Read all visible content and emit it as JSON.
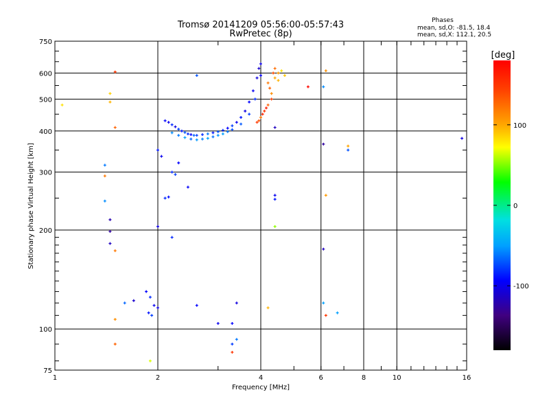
{
  "chart_data": {
    "type": "scatter",
    "title": "Tromsø 20141209 05:56:00-05:57:43",
    "subtitle": "RwPretec (8p)",
    "xlabel": "Frequency [MHz]",
    "ylabel": "Stationary phase Virtual Height [km]",
    "x_scale": "log",
    "y_scale": "log",
    "xlim": [
      1,
      16
    ],
    "ylim": [
      75,
      750
    ],
    "x_ticks": [
      1,
      2,
      4,
      6,
      8,
      10,
      16
    ],
    "x_tick_labels": [
      "1",
      "2",
      "4",
      "6",
      "8",
      "10",
      "16"
    ],
    "y_ticks": [
      75,
      100,
      200,
      300,
      400,
      500,
      600,
      750
    ],
    "y_tick_labels": [
      "75",
      "100",
      "200",
      "300",
      "400",
      "500",
      "600",
      "750"
    ],
    "grid": true,
    "stats": {
      "heading": "Phases",
      "line_o": "mean, sd,O: -81.5, 18.4",
      "line_x": "mean, sd,X: 112.1, 20.5"
    },
    "colorbar": {
      "label": "[deg]",
      "range": [
        -180,
        180
      ],
      "ticks": [
        100,
        0,
        -100
      ],
      "tick_labels": [
        "100",
        "0",
        "-100"
      ]
    },
    "series": [
      {
        "points": [
          {
            "x": 2.1,
            "y": 430,
            "p": -110
          },
          {
            "x": 2.15,
            "y": 425,
            "p": -115
          },
          {
            "x": 2.2,
            "y": 418,
            "p": -100
          },
          {
            "x": 2.25,
            "y": 412,
            "p": -120
          },
          {
            "x": 2.3,
            "y": 405,
            "p": -95
          },
          {
            "x": 2.35,
            "y": 400,
            "p": -105
          },
          {
            "x": 2.4,
            "y": 396,
            "p": -90
          },
          {
            "x": 2.45,
            "y": 392,
            "p": -100
          },
          {
            "x": 2.5,
            "y": 390,
            "p": -110
          },
          {
            "x": 2.55,
            "y": 388,
            "p": -85
          },
          {
            "x": 2.6,
            "y": 388,
            "p": -95
          },
          {
            "x": 2.7,
            "y": 390,
            "p": -100
          },
          {
            "x": 2.8,
            "y": 392,
            "p": -80
          },
          {
            "x": 2.9,
            "y": 395,
            "p": -105
          },
          {
            "x": 3.0,
            "y": 398,
            "p": -90
          },
          {
            "x": 3.1,
            "y": 402,
            "p": -100
          },
          {
            "x": 3.2,
            "y": 408,
            "p": -110
          },
          {
            "x": 3.3,
            "y": 415,
            "p": -95
          },
          {
            "x": 3.4,
            "y": 425,
            "p": -115
          },
          {
            "x": 3.5,
            "y": 440,
            "p": -105
          },
          {
            "x": 3.6,
            "y": 460,
            "p": -120
          },
          {
            "x": 3.7,
            "y": 490,
            "p": -110
          },
          {
            "x": 3.8,
            "y": 530,
            "p": -115
          },
          {
            "x": 3.9,
            "y": 580,
            "p": -120
          },
          {
            "x": 3.95,
            "y": 620,
            "p": -125
          },
          {
            "x": 4.0,
            "y": 640,
            "p": -118
          },
          {
            "x": 4.0,
            "y": 590,
            "p": -112
          },
          {
            "x": 2.2,
            "y": 395,
            "p": -75
          },
          {
            "x": 2.3,
            "y": 388,
            "p": -80
          },
          {
            "x": 2.4,
            "y": 382,
            "p": -70
          },
          {
            "x": 2.5,
            "y": 378,
            "p": -85
          },
          {
            "x": 2.6,
            "y": 376,
            "p": -72
          },
          {
            "x": 2.7,
            "y": 378,
            "p": -78
          },
          {
            "x": 2.8,
            "y": 380,
            "p": -68
          },
          {
            "x": 2.9,
            "y": 384,
            "p": -82
          },
          {
            "x": 3.0,
            "y": 388,
            "p": -74
          },
          {
            "x": 3.1,
            "y": 392,
            "p": -70
          },
          {
            "x": 3.2,
            "y": 398,
            "p": -80
          },
          {
            "x": 3.3,
            "y": 404,
            "p": -90
          },
          {
            "x": 3.5,
            "y": 420,
            "p": -88
          },
          {
            "x": 3.7,
            "y": 450,
            "p": -95
          },
          {
            "x": 3.85,
            "y": 500,
            "p": -100
          },
          {
            "x": 2.0,
            "y": 350,
            "p": -105
          },
          {
            "x": 2.05,
            "y": 335,
            "p": -115
          },
          {
            "x": 2.2,
            "y": 300,
            "p": -100
          },
          {
            "x": 2.25,
            "y": 295,
            "p": -95
          },
          {
            "x": 2.3,
            "y": 320,
            "p": -110
          },
          {
            "x": 2.1,
            "y": 250,
            "p": -100
          },
          {
            "x": 2.15,
            "y": 252,
            "p": -108
          },
          {
            "x": 2.45,
            "y": 270,
            "p": -112
          },
          {
            "x": 2.0,
            "y": 205,
            "p": -120
          },
          {
            "x": 2.6,
            "y": 590,
            "p": -90
          },
          {
            "x": 1.85,
            "y": 130,
            "p": -110
          },
          {
            "x": 1.9,
            "y": 125,
            "p": -100
          },
          {
            "x": 1.95,
            "y": 118,
            "p": -115
          },
          {
            "x": 1.88,
            "y": 112,
            "p": -105
          },
          {
            "x": 1.92,
            "y": 110,
            "p": -95
          },
          {
            "x": 2.0,
            "y": 116,
            "p": -120
          },
          {
            "x": 1.7,
            "y": 122,
            "p": -125
          },
          {
            "x": 1.6,
            "y": 120,
            "p": -85
          },
          {
            "x": 2.2,
            "y": 190,
            "p": -100
          },
          {
            "x": 2.6,
            "y": 118,
            "p": -110
          },
          {
            "x": 3.0,
            "y": 104,
            "p": -115
          },
          {
            "x": 3.3,
            "y": 104,
            "p": -110
          },
          {
            "x": 3.4,
            "y": 120,
            "p": -120
          },
          {
            "x": 3.3,
            "y": 90,
            "p": -95
          },
          {
            "x": 3.4,
            "y": 93,
            "p": -80
          },
          {
            "x": 1.4,
            "y": 315,
            "p": -80
          },
          {
            "x": 1.4,
            "y": 245,
            "p": -75
          },
          {
            "x": 1.45,
            "y": 215,
            "p": -135
          },
          {
            "x": 1.45,
            "y": 198,
            "p": -140
          },
          {
            "x": 1.45,
            "y": 182,
            "p": -130
          },
          {
            "x": 4.4,
            "y": 410,
            "p": -130
          },
          {
            "x": 4.4,
            "y": 255,
            "p": -115
          },
          {
            "x": 4.4,
            "y": 248,
            "p": -105
          },
          {
            "x": 6.1,
            "y": 365,
            "p": -140
          },
          {
            "x": 6.1,
            "y": 175,
            "p": -130
          },
          {
            "x": 6.1,
            "y": 545,
            "p": -75
          },
          {
            "x": 6.1,
            "y": 120,
            "p": -70
          },
          {
            "x": 6.7,
            "y": 112,
            "p": -70
          },
          {
            "x": 7.2,
            "y": 350,
            "p": -90
          },
          {
            "x": 15.5,
            "y": 380,
            "p": -120
          },
          {
            "x": 4.2,
            "y": 560,
            "p": 120
          },
          {
            "x": 4.25,
            "y": 540,
            "p": 130
          },
          {
            "x": 4.3,
            "y": 520,
            "p": 110
          },
          {
            "x": 4.35,
            "y": 600,
            "p": 140
          },
          {
            "x": 4.4,
            "y": 620,
            "p": 125
          },
          {
            "x": 4.4,
            "y": 580,
            "p": 100
          },
          {
            "x": 4.3,
            "y": 500,
            "p": 145
          },
          {
            "x": 4.2,
            "y": 480,
            "p": 130
          },
          {
            "x": 4.1,
            "y": 460,
            "p": 150
          },
          {
            "x": 4.0,
            "y": 440,
            "p": 120
          },
          {
            "x": 3.95,
            "y": 430,
            "p": 135
          },
          {
            "x": 3.9,
            "y": 425,
            "p": 150
          },
          {
            "x": 4.5,
            "y": 600,
            "p": 105
          },
          {
            "x": 4.5,
            "y": 570,
            "p": 95
          },
          {
            "x": 4.15,
            "y": 470,
            "p": 165
          },
          {
            "x": 4.05,
            "y": 450,
            "p": 160
          },
          {
            "x": 4.6,
            "y": 610,
            "p": 80
          },
          {
            "x": 4.7,
            "y": 590,
            "p": 90
          },
          {
            "x": 5.5,
            "y": 545,
            "p": 175
          },
          {
            "x": 6.2,
            "y": 610,
            "p": 110
          },
          {
            "x": 6.2,
            "y": 255,
            "p": 105
          },
          {
            "x": 7.2,
            "y": 360,
            "p": 100
          },
          {
            "x": 4.2,
            "y": 116,
            "p": 95
          },
          {
            "x": 6.2,
            "y": 110,
            "p": 150
          },
          {
            "x": 4.4,
            "y": 205,
            "p": 40
          },
          {
            "x": 1.4,
            "y": 292,
            "p": 120
          },
          {
            "x": 1.45,
            "y": 520,
            "p": 85
          },
          {
            "x": 1.45,
            "y": 490,
            "p": 95
          },
          {
            "x": 1.5,
            "y": 410,
            "p": 130
          },
          {
            "x": 1.5,
            "y": 605,
            "p": 150
          },
          {
            "x": 1.05,
            "y": 480,
            "p": 80
          },
          {
            "x": 1.5,
            "y": 173,
            "p": 120
          },
          {
            "x": 1.5,
            "y": 107,
            "p": 110
          },
          {
            "x": 1.5,
            "y": 90,
            "p": 130
          },
          {
            "x": 1.9,
            "y": 80,
            "p": 60
          },
          {
            "x": 3.3,
            "y": 85,
            "p": 150
          }
        ]
      }
    ]
  }
}
